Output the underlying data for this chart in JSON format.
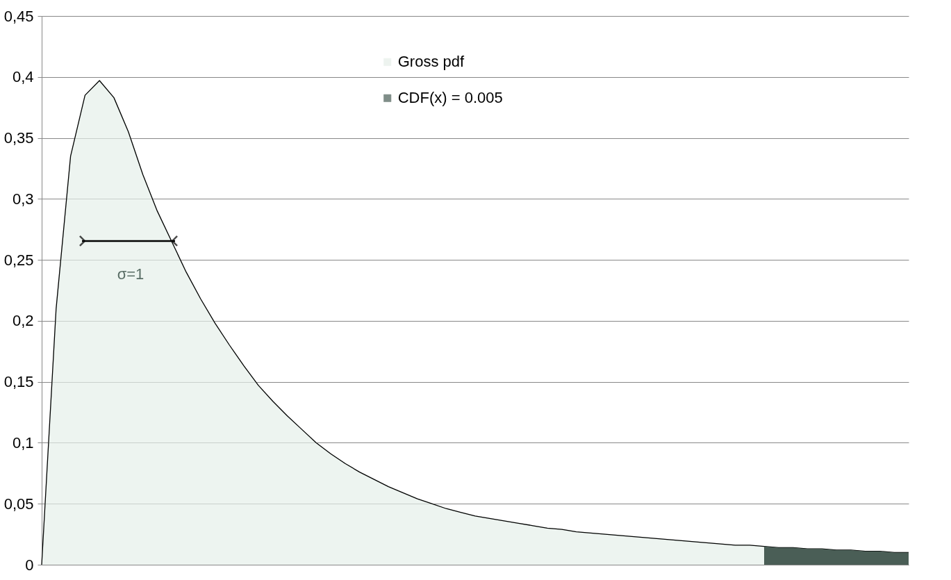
{
  "chart_data": {
    "type": "area",
    "categories": [
      null,
      null,
      null,
      null,
      null,
      null,
      null,
      null,
      null,
      null,
      null,
      null,
      null,
      null,
      null,
      null,
      null,
      null,
      null,
      null,
      null,
      null,
      null,
      null,
      null,
      null,
      null,
      null,
      null,
      null,
      null,
      null,
      null,
      null,
      null,
      null,
      null,
      null,
      null,
      null,
      null,
      null,
      null,
      null,
      null,
      null,
      null,
      null,
      null,
      null,
      null,
      null,
      null,
      null,
      null,
      null,
      null,
      null,
      null,
      null,
      null
    ],
    "series": [
      {
        "name": "Gross pdf",
        "color": "#e6efe9",
        "values": [
          0,
          0.21,
          0.335,
          0.385,
          0.397,
          0.383,
          0.355,
          0.32,
          0.29,
          0.265,
          0.24,
          0.218,
          0.198,
          0.18,
          0.163,
          0.147,
          0.134,
          0.122,
          0.111,
          0.1,
          0.091,
          0.083,
          0.076,
          0.07,
          0.064,
          0.059,
          0.054,
          0.05,
          0.046,
          0.043,
          0.04,
          0.038,
          0.036,
          0.034,
          0.032,
          0.03,
          0.029,
          0.027,
          0.026,
          0.025,
          0.024,
          0.023,
          0.022,
          0.021,
          0.02,
          0.019,
          0.018,
          0.017,
          0.016,
          0.016,
          0.015,
          0.014,
          0.014,
          0.013,
          0.013,
          0.012,
          0.012,
          0.011,
          0.011,
          0.01,
          0.01
        ]
      },
      {
        "name": "CDF(x) =  0.005",
        "color": "#4a5e56",
        "values": [
          null,
          null,
          null,
          null,
          null,
          null,
          null,
          null,
          null,
          null,
          null,
          null,
          null,
          null,
          null,
          null,
          null,
          null,
          null,
          null,
          null,
          null,
          null,
          null,
          null,
          null,
          null,
          null,
          null,
          null,
          null,
          null,
          null,
          null,
          null,
          null,
          null,
          null,
          null,
          null,
          null,
          null,
          null,
          null,
          null,
          null,
          null,
          null,
          null,
          null,
          0.015,
          0.014,
          0.014,
          0.013,
          0.013,
          0.012,
          0.012,
          0.011,
          0.011,
          0.01,
          0.01
        ]
      }
    ],
    "ylim": [
      0,
      0.45
    ],
    "yticks": [
      0,
      {
        "value": 0.05,
        "label": "0,05"
      },
      {
        "value": 0.1,
        "label": "0,1"
      },
      {
        "value": 0.15,
        "label": "0,15"
      },
      {
        "value": 0.2,
        "label": "0,2"
      },
      {
        "value": 0.25,
        "label": "0,25"
      },
      {
        "value": 0.3,
        "label": "0,3"
      },
      {
        "value": 0.35,
        "label": "0,35"
      },
      {
        "value": 0.4,
        "label": "0,4"
      },
      {
        "value": 0.45,
        "label": "0,45"
      }
    ],
    "grid": "y",
    "legend": "top right",
    "tick_labels": "y",
    "annotations": [
      "σ=1"
    ]
  }
}
